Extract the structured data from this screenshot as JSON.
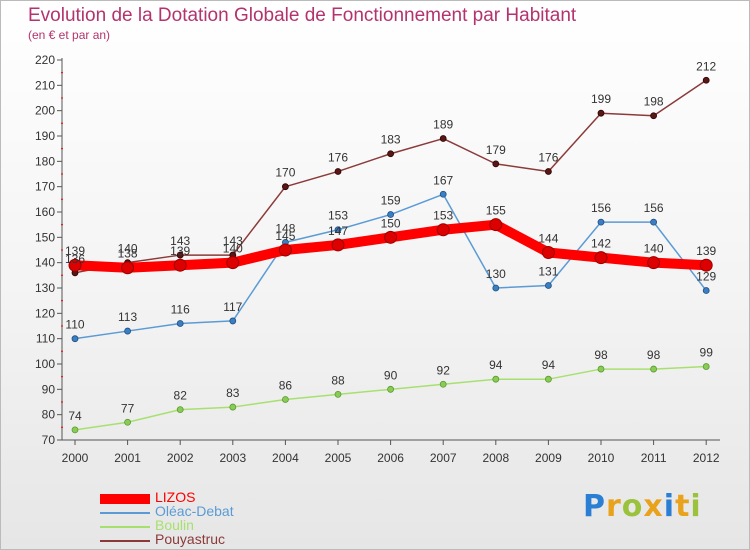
{
  "header": {
    "title": "Evolution de la Dotation Globale de Fonctionnement par Habitant",
    "subtitle": "(en € et par an)"
  },
  "brand": {
    "letters": [
      "P",
      "r",
      "o",
      "x",
      "i",
      "t",
      "i"
    ],
    "colors": [
      "#2a7fd4",
      "#e8a21b",
      "#9ac23c",
      "#e8a21b",
      "#2a7fd4",
      "#e8a21b",
      "#9ac23c"
    ]
  },
  "chart_data": {
    "type": "line",
    "title": "Evolution de la Dotation Globale de Fonctionnement par Habitant",
    "subtitle": "(en € et par an)",
    "xlabel": "",
    "ylabel": "",
    "x": [
      "2000",
      "2001",
      "2002",
      "2003",
      "2004",
      "2005",
      "2006",
      "2007",
      "2008",
      "2009",
      "2010",
      "2011",
      "2012"
    ],
    "ylim": [
      70,
      220
    ],
    "yticks": [
      70,
      80,
      90,
      100,
      110,
      120,
      130,
      140,
      150,
      160,
      170,
      180,
      190,
      200,
      210,
      220
    ],
    "grid": false,
    "legend": "bottom-left",
    "series": [
      {
        "name": "LIZOS",
        "color": "#ff0000",
        "values": [
          139,
          138,
          139,
          140,
          145,
          147,
          150,
          153,
          155,
          144,
          142,
          140,
          139
        ]
      },
      {
        "name": "Oléac-Debat",
        "color": "#4a90d0",
        "values": [
          110,
          113,
          116,
          117,
          148,
          153,
          159,
          167,
          130,
          131,
          156,
          156,
          129
        ]
      },
      {
        "name": "Boulin",
        "color": "#99d966",
        "values": [
          74,
          77,
          82,
          83,
          86,
          88,
          90,
          92,
          94,
          94,
          98,
          98,
          99
        ]
      },
      {
        "name": "Pouyastruc",
        "color": "#7a2a2a",
        "values": [
          136,
          140,
          143,
          143,
          170,
          176,
          183,
          189,
          179,
          176,
          199,
          198,
          212
        ]
      }
    ]
  }
}
